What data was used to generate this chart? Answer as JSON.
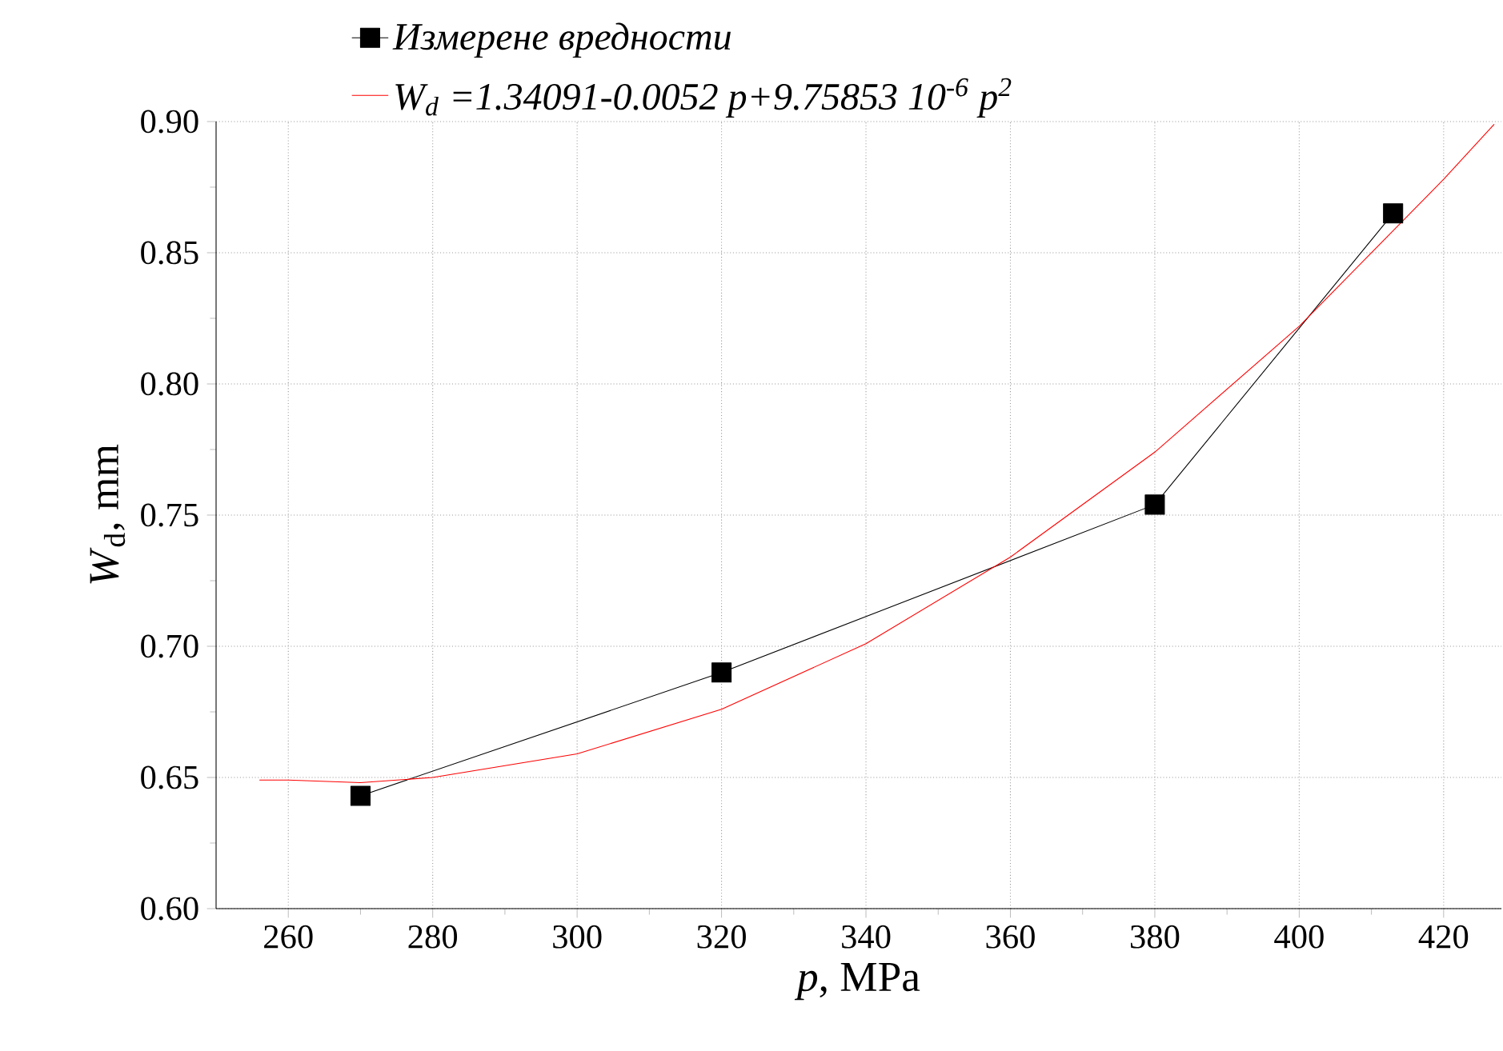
{
  "chart_data": {
    "type": "line",
    "xlabel": "*p*, MPa",
    "ylabel": "*W*$_{d}$, mm",
    "xlim": [
      250,
      428
    ],
    "ylim": [
      0.6,
      0.9
    ],
    "xticks": [
      260,
      280,
      300,
      320,
      340,
      360,
      380,
      400,
      420
    ],
    "yticks": [
      {
        "value": 0.6,
        "label": "0.60"
      },
      {
        "value": 0.65,
        "label": "0.65"
      },
      {
        "value": 0.7,
        "label": "0.70"
      },
      {
        "value": 0.75,
        "label": "0.75"
      },
      {
        "value": 0.8,
        "label": "0.80"
      },
      {
        "value": 0.85,
        "label": "0.85"
      },
      {
        "value": 0.9,
        "label": "0.90"
      }
    ],
    "grid": true,
    "legend": "top",
    "series": [
      {
        "name": "Измерене вредности",
        "color": "#000000",
        "marker": "square",
        "x": [
          270,
          320,
          380,
          413
        ],
        "values": [
          0.643,
          0.69,
          0.754,
          0.865
        ]
      },
      {
        "name": "W$_{d}$ =1.34091-0.0052 p+9.75853 10$^{-6}$ p$^{2}$",
        "color": "#ff0000",
        "marker": "none",
        "x": [
          256,
          260,
          270,
          280,
          300,
          320,
          340,
          360,
          380,
          400,
          420,
          427
        ],
        "values": [
          0.649,
          0.649,
          0.648,
          0.65,
          0.659,
          0.676,
          0.701,
          0.734,
          0.774,
          0.822,
          0.878,
          0.899
        ]
      }
    ]
  }
}
